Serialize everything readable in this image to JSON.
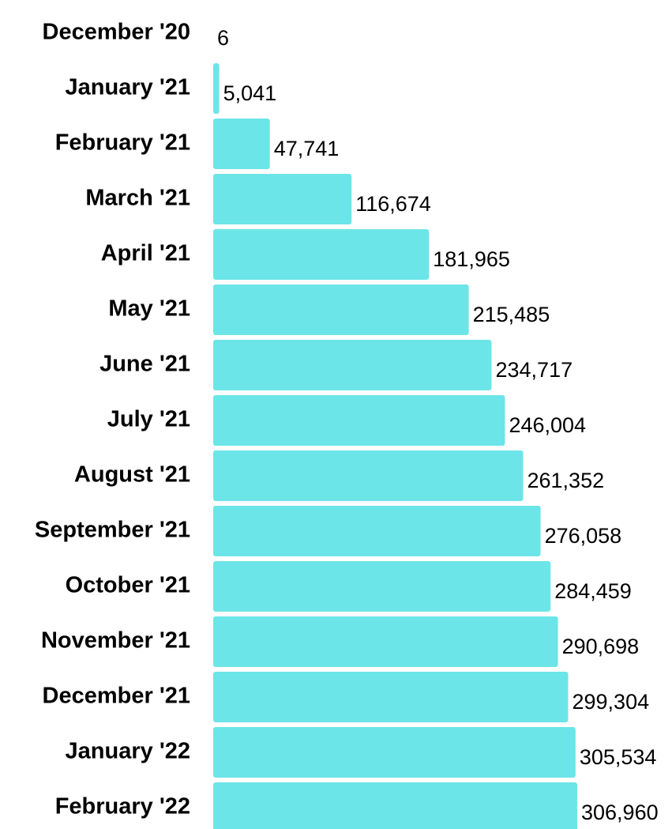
{
  "chart_data": {
    "type": "bar",
    "orientation": "horizontal",
    "categories": [
      "December '20",
      "January '21",
      "February '21",
      "March '21",
      "April '21",
      "May '21",
      "June '21",
      "July '21",
      "August '21",
      "September '21",
      "October '21",
      "November '21",
      "December '21",
      "January '22",
      "February '22"
    ],
    "values": [
      6,
      5041,
      47741,
      116674,
      181965,
      215485,
      234717,
      246004,
      261352,
      276058,
      284459,
      290698,
      299304,
      305534,
      306960
    ],
    "value_labels": [
      "6",
      "5,041",
      "47,741",
      "116,674",
      "181,965",
      "215,485",
      "234,717",
      "246,004",
      "261,352",
      "276,058",
      "284,459",
      "290,698",
      "299,304",
      "305,534",
      "306,960"
    ],
    "color": "#6ce5e8"
  }
}
